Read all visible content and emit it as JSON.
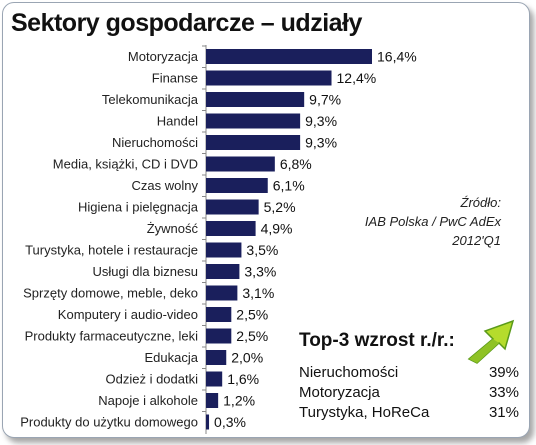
{
  "title": "Sektory gospodarcze – udziały",
  "source": {
    "line1": "Źródło:",
    "line2": "IAB Polska / PwC AdEx",
    "line3": "2012'Q1"
  },
  "top3": {
    "heading": "Top-3 wzrost r./r.:",
    "items": [
      {
        "name": "Nieruchomości",
        "value": "39%"
      },
      {
        "name": "Motoryzacja",
        "value": "33%"
      },
      {
        "name": "Turystyka, HoReCa",
        "value": "31%"
      }
    ]
  },
  "icon": "growth-arrow-icon",
  "colors": {
    "bar": "#1a1f5c",
    "arrow_light": "#b5dc2c",
    "arrow_dark": "#5a9a1a"
  },
  "chart_data": {
    "type": "bar",
    "orientation": "horizontal",
    "categories": [
      "Motoryzacja",
      "Finanse",
      "Telekomunikacja",
      "Handel",
      "Nieruchomości",
      "Media, książki, CD i DVD",
      "Czas wolny",
      "Higiena i pielęgnacja",
      "Żywność",
      "Turystyka, hotele i restauracje",
      "Usługi dla biznesu",
      "Sprzęty domowe, meble, deko",
      "Komputery i audio-video",
      "Produkty farmaceutyczne, leki",
      "Edukacja",
      "Odzież i dodatki",
      "Napoje i alkohole",
      "Produkty do użytku domowego"
    ],
    "values": [
      16.4,
      12.4,
      9.7,
      9.3,
      9.3,
      6.8,
      6.1,
      5.2,
      4.9,
      3.5,
      3.3,
      3.1,
      2.5,
      2.5,
      2.0,
      1.6,
      1.2,
      0.3
    ],
    "labels": [
      "16,4%",
      "12,4%",
      "9,7%",
      "9,3%",
      "9,3%",
      "6,8%",
      "6,1%",
      "5,2%",
      "4,9%",
      "3,5%",
      "3,3%",
      "3,1%",
      "2,5%",
      "2,5%",
      "2,0%",
      "1,6%",
      "1,2%",
      "0,3%"
    ],
    "title": "Sektory gospodarcze – udziały",
    "xlim": [
      0,
      17
    ],
    "grid": false,
    "legend": "none"
  }
}
